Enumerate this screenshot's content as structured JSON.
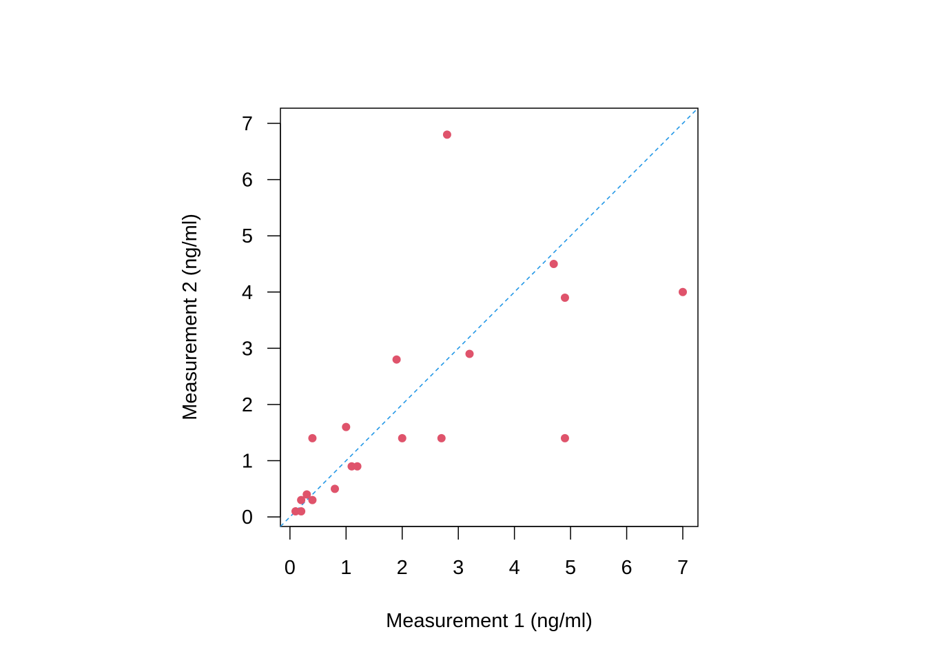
{
  "chart_data": {
    "type": "scatter",
    "title": "",
    "xlabel": "Measurement 1 (ng/ml)",
    "ylabel": "Measurement 2 (ng/ml)",
    "xlim": [
      -0.17,
      7.27
    ],
    "ylim": [
      -0.17,
      7.27
    ],
    "xticks": [
      "0",
      "1",
      "2",
      "3",
      "4",
      "5",
      "6",
      "7"
    ],
    "yticks": [
      "0",
      "1",
      "2",
      "3",
      "4",
      "5",
      "6",
      "7"
    ],
    "grid": false,
    "point_color": "#DF536B",
    "reference_line": {
      "type": "identity",
      "style": "dashed",
      "color": "#2297E6"
    },
    "points": [
      {
        "x": 2.8,
        "y": 6.8
      },
      {
        "x": 4.7,
        "y": 4.5
      },
      {
        "x": 4.9,
        "y": 3.9
      },
      {
        "x": 7.0,
        "y": 4.0
      },
      {
        "x": 3.2,
        "y": 2.9
      },
      {
        "x": 1.9,
        "y": 2.8
      },
      {
        "x": 1.0,
        "y": 1.6
      },
      {
        "x": 0.4,
        "y": 1.4
      },
      {
        "x": 2.0,
        "y": 1.4
      },
      {
        "x": 2.7,
        "y": 1.4
      },
      {
        "x": 4.9,
        "y": 1.4
      },
      {
        "x": 1.1,
        "y": 0.9
      },
      {
        "x": 1.2,
        "y": 0.9
      },
      {
        "x": 0.8,
        "y": 0.5
      },
      {
        "x": 0.1,
        "y": 0.1
      },
      {
        "x": 0.2,
        "y": 0.1
      },
      {
        "x": 0.2,
        "y": 0.3
      },
      {
        "x": 0.3,
        "y": 0.4
      },
      {
        "x": 0.4,
        "y": 0.3
      }
    ]
  }
}
